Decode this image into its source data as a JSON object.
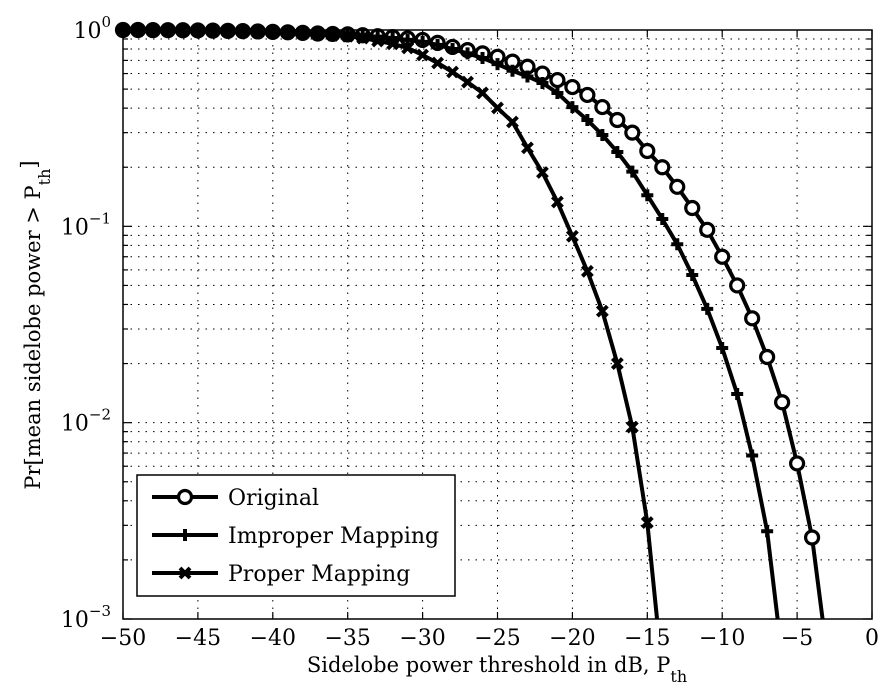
{
  "chart_data": {
    "type": "line",
    "title": "",
    "xlabel": "Sidelobe power threshold in dB, P",
    "xlabel_subscript": "th",
    "ylabel": "Pr[mean sidelobe power > P",
    "ylabel_subscript": "th",
    "ylabel_suffix": "]",
    "xlim": [
      -50,
      0
    ],
    "ylim": [
      0.001,
      1
    ],
    "yscale": "log",
    "grid": true,
    "legend_position": "lower left",
    "x_ticks": [
      -50,
      -45,
      -40,
      -35,
      -30,
      -25,
      -20,
      -15,
      -10,
      -5,
      0
    ],
    "x_tick_labels": [
      "−50",
      "−45",
      "−40",
      "−35",
      "−30",
      "−25",
      "−20",
      "−15",
      "−10",
      "−5",
      "0"
    ],
    "y_ticks": [
      1,
      0.1,
      0.01,
      0.001
    ],
    "y_tick_labels": [
      {
        "base": "10",
        "exp": "0"
      },
      {
        "base": "10",
        "exp": "−1"
      },
      {
        "base": "10",
        "exp": "−2"
      },
      {
        "base": "10",
        "exp": "−3"
      }
    ],
    "series": [
      {
        "name": "Original",
        "marker": "circle",
        "color": "#000000",
        "x": [
          -50,
          -49,
          -48,
          -47,
          -46,
          -45,
          -44,
          -43,
          -42,
          -41,
          -40,
          -39,
          -38,
          -37,
          -36,
          -35,
          -34,
          -33,
          -32,
          -31,
          -30,
          -29,
          -28,
          -27,
          -26,
          -25,
          -24,
          -23,
          -22,
          -21,
          -20,
          -19,
          -18,
          -17,
          -16,
          -15,
          -14,
          -13,
          -12,
          -11,
          -10,
          -9,
          -8,
          -7,
          -6,
          -5,
          -4,
          -3.3
        ],
        "y": [
          1.0,
          1.0,
          0.999,
          0.998,
          0.997,
          0.995,
          0.993,
          0.99,
          0.987,
          0.983,
          0.978,
          0.973,
          0.967,
          0.96,
          0.955,
          0.95,
          0.94,
          0.93,
          0.92,
          0.905,
          0.89,
          0.86,
          0.82,
          0.79,
          0.76,
          0.73,
          0.69,
          0.65,
          0.6,
          0.556,
          0.512,
          0.467,
          0.405,
          0.348,
          0.3,
          0.242,
          0.2,
          0.159,
          0.124,
          0.096,
          0.07,
          0.05,
          0.034,
          0.0216,
          0.0127,
          0.0062,
          0.0026,
          0.001
        ],
        "marker_last": false
      },
      {
        "name": "Improper Mapping",
        "marker": "plus",
        "color": "#000000",
        "x": [
          -50,
          -49,
          -48,
          -47,
          -46,
          -45,
          -44,
          -43,
          -42,
          -41,
          -40,
          -39,
          -38,
          -37,
          -36,
          -35,
          -34,
          -33,
          -32,
          -31,
          -30,
          -29,
          -28,
          -27,
          -26,
          -25,
          -24,
          -23,
          -22,
          -21,
          -20,
          -19,
          -18,
          -17,
          -16,
          -15,
          -14,
          -13,
          -12,
          -11,
          -10,
          -9,
          -8,
          -7,
          -6.3
        ],
        "y": [
          1.0,
          1.0,
          0.999,
          0.998,
          0.997,
          0.995,
          0.993,
          0.99,
          0.986,
          0.982,
          0.977,
          0.971,
          0.964,
          0.957,
          0.952,
          0.945,
          0.935,
          0.925,
          0.91,
          0.89,
          0.87,
          0.84,
          0.8,
          0.76,
          0.72,
          0.67,
          0.62,
          0.58,
          0.537,
          0.478,
          0.405,
          0.348,
          0.292,
          0.239,
          0.19,
          0.144,
          0.109,
          0.081,
          0.0565,
          0.038,
          0.024,
          0.014,
          0.0068,
          0.0028,
          0.001
        ],
        "marker_last": false
      },
      {
        "name": "Proper Mapping",
        "marker": "x",
        "color": "#000000",
        "x": [
          -50,
          -49,
          -48,
          -47,
          -46,
          -45,
          -44,
          -43,
          -42,
          -41,
          -40,
          -39,
          -38,
          -37,
          -36,
          -35,
          -34,
          -33,
          -32,
          -31,
          -30,
          -29,
          -28,
          -27,
          -26,
          -25,
          -24,
          -23,
          -22,
          -21,
          -20,
          -19,
          -18,
          -17,
          -16,
          -15,
          -14.35
        ],
        "y": [
          1.0,
          1.0,
          0.999,
          0.998,
          0.997,
          0.995,
          0.992,
          0.989,
          0.985,
          0.98,
          0.975,
          0.968,
          0.96,
          0.95,
          0.94,
          0.93,
          0.91,
          0.88,
          0.85,
          0.81,
          0.746,
          0.679,
          0.611,
          0.543,
          0.478,
          0.401,
          0.34,
          0.251,
          0.188,
          0.133,
          0.089,
          0.059,
          0.037,
          0.02,
          0.0095,
          0.0031,
          0.001
        ],
        "marker_last": false
      }
    ]
  },
  "legend": {
    "items": [
      {
        "label": "Original",
        "marker": "circle"
      },
      {
        "label": "Improper Mapping",
        "marker": "plus"
      },
      {
        "label": "Proper Mapping",
        "marker": "x"
      }
    ]
  },
  "axes": {
    "xlabel_main": "Sidelobe power threshold in dB, P",
    "xlabel_sub": "th",
    "ylabel_main": "Pr[mean sidelobe power > P",
    "ylabel_sub": "th",
    "ylabel_end": "]"
  }
}
